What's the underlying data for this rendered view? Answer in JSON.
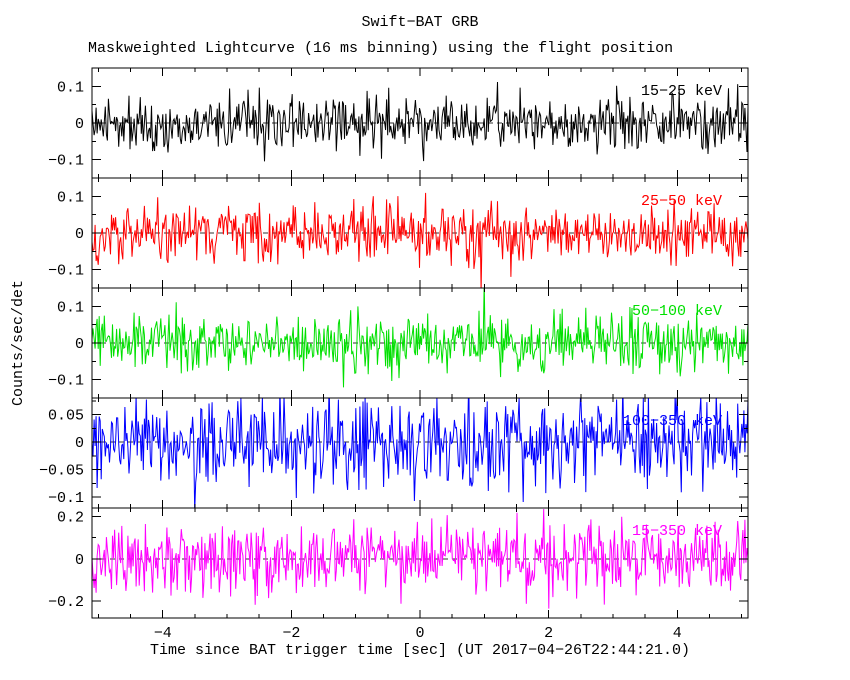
{
  "chart_data": {
    "type": "line",
    "title": "Swift−BAT GRB",
    "subtitle": "Maskweighted Lightcurve (16 ms binning) using the flight position",
    "xlabel": "Time since BAT trigger time [sec] (UT 2017−04−26T22:44:21.0)",
    "ylabel": "Counts/sec/det",
    "xlim": [
      -5.1,
      5.1
    ],
    "x_ticks": [
      -4,
      -2,
      0,
      2,
      4
    ],
    "x_minor_step": 0.5,
    "bin_width_sec": 0.016,
    "n_points": 640,
    "grid": false,
    "zero_line_style": "dashed",
    "legend_position": "in-panel-right",
    "panels": [
      {
        "label": "15−25 keV",
        "color": "#000000",
        "ylim": [
          -0.15,
          0.15
        ],
        "yticks": [
          0.1,
          0,
          -0.1
        ],
        "noise_mean": 0,
        "noise_std": 0.038,
        "seed": 11,
        "spikes": []
      },
      {
        "label": "25−50 keV",
        "color": "#ff0000",
        "ylim": [
          -0.15,
          0.15
        ],
        "yticks": [
          0.1,
          0,
          -0.1
        ],
        "noise_mean": 0,
        "noise_std": 0.038,
        "seed": 22,
        "spikes": [
          {
            "x": 0.95,
            "v": -0.16
          }
        ]
      },
      {
        "label": "50−100 keV",
        "color": "#00e000",
        "ylim": [
          -0.15,
          0.15
        ],
        "yticks": [
          0.1,
          0,
          -0.1
        ],
        "noise_mean": 0,
        "noise_std": 0.038,
        "seed": 33,
        "spikes": [
          {
            "x": 1.0,
            "v": 0.17
          }
        ]
      },
      {
        "label": "100−350 keV",
        "color": "#0000ff",
        "ylim": [
          -0.12,
          0.08
        ],
        "yticks": [
          0.05,
          0,
          -0.05,
          -0.1
        ],
        "noise_mean": 0,
        "noise_std": 0.042,
        "seed": 44,
        "spikes": []
      },
      {
        "label": "15−350 keV",
        "color": "#ff00ff",
        "ylim": [
          -0.28,
          0.24
        ],
        "yticks": [
          0.2,
          0,
          -0.2
        ],
        "noise_mean": 0,
        "noise_std": 0.085,
        "seed": 55,
        "spikes": []
      }
    ]
  }
}
